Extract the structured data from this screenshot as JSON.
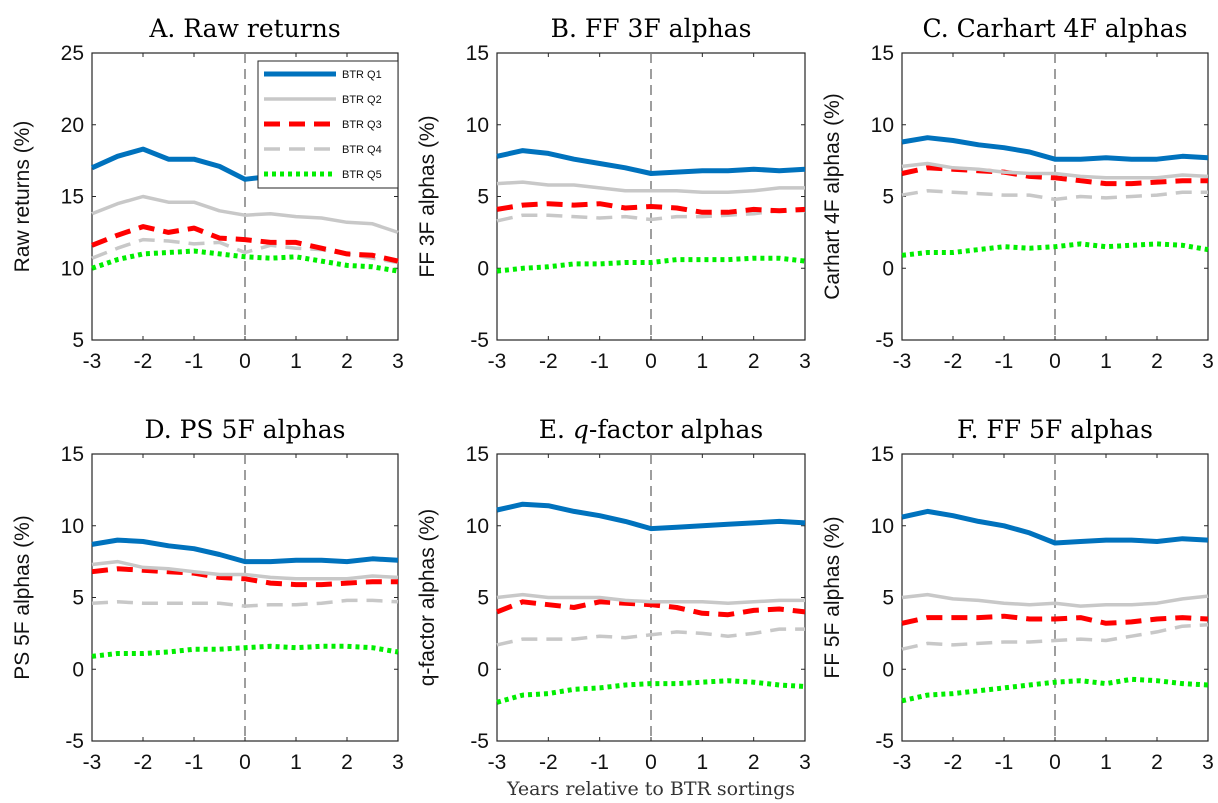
{
  "figure": {
    "xlabel": "Years relative to BTR sortings"
  },
  "legend": [
    "BTR Q1",
    "BTR Q2",
    "BTR Q3",
    "BTR Q4",
    "BTR Q5"
  ],
  "series_styles": [
    {
      "name": "BTR Q1",
      "color": "#0072BD",
      "dash": "solid"
    },
    {
      "name": "BTR Q2",
      "color": "#c8c8c8",
      "dash": "solid"
    },
    {
      "name": "BTR Q3",
      "color": "#ff0000",
      "dash": "dashed"
    },
    {
      "name": "BTR Q4",
      "color": "#c8c8c8",
      "dash": "dashed"
    },
    {
      "name": "BTR Q5",
      "color": "#00ee00",
      "dash": "dotted"
    }
  ],
  "chart_data": [
    {
      "type": "line",
      "title": "A. Raw returns",
      "ylabel": "Raw returns (%)",
      "xlim": [
        -3,
        3
      ],
      "ylim": [
        5,
        25
      ],
      "xticks": [
        -3,
        -2,
        -1,
        0,
        1,
        2,
        3
      ],
      "yticks": [
        5,
        10,
        15,
        20,
        25
      ],
      "x": [
        -3,
        -2.5,
        -2,
        -1.5,
        -1,
        -0.5,
        0,
        0.5,
        1,
        1.5,
        2,
        2.5,
        3
      ],
      "legend_position": "top-right",
      "series": [
        {
          "name": "BTR Q1",
          "values": [
            17.0,
            17.8,
            18.3,
            17.6,
            17.6,
            17.1,
            16.2,
            16.4,
            16.5,
            16.3,
            16.1,
            16.2,
            16.1
          ]
        },
        {
          "name": "BTR Q2",
          "values": [
            13.8,
            14.5,
            15.0,
            14.6,
            14.6,
            14.0,
            13.7,
            13.8,
            13.6,
            13.5,
            13.2,
            13.1,
            12.5
          ]
        },
        {
          "name": "BTR Q3",
          "values": [
            11.6,
            12.3,
            12.9,
            12.5,
            12.8,
            12.1,
            12.0,
            11.8,
            11.8,
            11.4,
            11.0,
            10.9,
            10.5
          ]
        },
        {
          "name": "BTR Q4",
          "values": [
            10.7,
            11.4,
            12.0,
            11.9,
            11.7,
            11.8,
            11.1,
            11.6,
            11.4,
            11.3,
            11.0,
            10.7,
            10.4
          ]
        },
        {
          "name": "BTR Q5",
          "values": [
            10.0,
            10.6,
            11.0,
            11.1,
            11.2,
            11.0,
            10.8,
            10.7,
            10.8,
            10.5,
            10.2,
            10.1,
            9.8
          ]
        }
      ]
    },
    {
      "type": "line",
      "title": "B. FF 3F alphas",
      "ylabel": "FF 3F alphas (%)",
      "xlim": [
        -3,
        3
      ],
      "ylim": [
        -5,
        15
      ],
      "xticks": [
        -3,
        -2,
        -1,
        0,
        1,
        2,
        3
      ],
      "yticks": [
        -5,
        0,
        5,
        10,
        15
      ],
      "x": [
        -3,
        -2.5,
        -2,
        -1.5,
        -1,
        -0.5,
        0,
        0.5,
        1,
        1.5,
        2,
        2.5,
        3
      ],
      "series": [
        {
          "name": "BTR Q1",
          "values": [
            7.8,
            8.2,
            8.0,
            7.6,
            7.3,
            7.0,
            6.6,
            6.7,
            6.8,
            6.8,
            6.9,
            6.8,
            6.9
          ]
        },
        {
          "name": "BTR Q2",
          "values": [
            5.9,
            6.0,
            5.8,
            5.8,
            5.6,
            5.4,
            5.4,
            5.4,
            5.3,
            5.3,
            5.4,
            5.6,
            5.6
          ]
        },
        {
          "name": "BTR Q3",
          "values": [
            4.1,
            4.4,
            4.5,
            4.4,
            4.5,
            4.2,
            4.3,
            4.2,
            3.9,
            3.9,
            4.1,
            4.0,
            4.1
          ]
        },
        {
          "name": "BTR Q4",
          "values": [
            3.3,
            3.7,
            3.7,
            3.6,
            3.5,
            3.6,
            3.4,
            3.6,
            3.6,
            3.7,
            3.8,
            4.0,
            4.0
          ]
        },
        {
          "name": "BTR Q5",
          "values": [
            -0.2,
            0.0,
            0.1,
            0.3,
            0.3,
            0.4,
            0.4,
            0.6,
            0.6,
            0.6,
            0.7,
            0.7,
            0.5
          ]
        }
      ]
    },
    {
      "type": "line",
      "title": "C. Carhart 4F alphas",
      "ylabel": "Carhart 4F alphas (%)",
      "xlim": [
        -3,
        3
      ],
      "ylim": [
        -5,
        15
      ],
      "xticks": [
        -3,
        -2,
        -1,
        0,
        1,
        2,
        3
      ],
      "yticks": [
        -5,
        0,
        5,
        10,
        15
      ],
      "x": [
        -3,
        -2.5,
        -2,
        -1.5,
        -1,
        -0.5,
        0,
        0.5,
        1,
        1.5,
        2,
        2.5,
        3
      ],
      "series": [
        {
          "name": "BTR Q1",
          "values": [
            8.8,
            9.1,
            8.9,
            8.6,
            8.4,
            8.1,
            7.6,
            7.6,
            7.7,
            7.6,
            7.6,
            7.8,
            7.7
          ]
        },
        {
          "name": "BTR Q2",
          "values": [
            7.1,
            7.3,
            7.0,
            6.9,
            6.7,
            6.6,
            6.6,
            6.4,
            6.3,
            6.3,
            6.3,
            6.5,
            6.4
          ]
        },
        {
          "name": "BTR Q3",
          "values": [
            6.6,
            7.0,
            6.9,
            6.8,
            6.7,
            6.4,
            6.3,
            6.1,
            5.9,
            5.9,
            6.0,
            6.1,
            6.1
          ]
        },
        {
          "name": "BTR Q4",
          "values": [
            5.1,
            5.4,
            5.3,
            5.2,
            5.1,
            5.1,
            4.8,
            5.0,
            4.9,
            5.0,
            5.1,
            5.3,
            5.3
          ]
        },
        {
          "name": "BTR Q5",
          "values": [
            0.9,
            1.1,
            1.1,
            1.3,
            1.5,
            1.4,
            1.5,
            1.7,
            1.5,
            1.6,
            1.7,
            1.6,
            1.3
          ]
        }
      ]
    },
    {
      "type": "line",
      "title": "D. PS 5F alphas",
      "ylabel": "PS 5F alphas (%)",
      "xlim": [
        -3,
        3
      ],
      "ylim": [
        -5,
        15
      ],
      "xticks": [
        -3,
        -2,
        -1,
        0,
        1,
        2,
        3
      ],
      "yticks": [
        -5,
        0,
        5,
        10,
        15
      ],
      "x": [
        -3,
        -2.5,
        -2,
        -1.5,
        -1,
        -0.5,
        0,
        0.5,
        1,
        1.5,
        2,
        2.5,
        3
      ],
      "series": [
        {
          "name": "BTR Q1",
          "values": [
            8.7,
            9.0,
            8.9,
            8.6,
            8.4,
            8.0,
            7.5,
            7.5,
            7.6,
            7.6,
            7.5,
            7.7,
            7.6
          ]
        },
        {
          "name": "BTR Q2",
          "values": [
            7.3,
            7.5,
            7.1,
            7.0,
            6.8,
            6.6,
            6.6,
            6.4,
            6.3,
            6.3,
            6.3,
            6.5,
            6.4
          ]
        },
        {
          "name": "BTR Q3",
          "values": [
            6.8,
            7.0,
            6.9,
            6.8,
            6.7,
            6.4,
            6.3,
            6.0,
            5.9,
            5.9,
            6.0,
            6.1,
            6.1
          ]
        },
        {
          "name": "BTR Q4",
          "values": [
            4.6,
            4.7,
            4.6,
            4.6,
            4.6,
            4.6,
            4.4,
            4.5,
            4.5,
            4.6,
            4.8,
            4.8,
            4.7
          ]
        },
        {
          "name": "BTR Q5",
          "values": [
            0.9,
            1.1,
            1.1,
            1.2,
            1.4,
            1.4,
            1.5,
            1.6,
            1.5,
            1.6,
            1.6,
            1.5,
            1.2
          ]
        }
      ]
    },
    {
      "type": "line",
      "title": "E. q-factor alphas",
      "ylabel": "q-factor alphas (%)",
      "xlim": [
        -3,
        3
      ],
      "ylim": [
        -5,
        15
      ],
      "xticks": [
        -3,
        -2,
        -1,
        0,
        1,
        2,
        3
      ],
      "yticks": [
        -5,
        0,
        5,
        10,
        15
      ],
      "x": [
        -3,
        -2.5,
        -2,
        -1.5,
        -1,
        -0.5,
        0,
        0.5,
        1,
        1.5,
        2,
        2.5,
        3
      ],
      "series": [
        {
          "name": "BTR Q1",
          "values": [
            11.1,
            11.5,
            11.4,
            11.0,
            10.7,
            10.3,
            9.8,
            9.9,
            10.0,
            10.1,
            10.2,
            10.3,
            10.2
          ]
        },
        {
          "name": "BTR Q2",
          "values": [
            5.0,
            5.2,
            5.0,
            5.0,
            5.0,
            4.8,
            4.7,
            4.7,
            4.7,
            4.6,
            4.7,
            4.8,
            4.8
          ]
        },
        {
          "name": "BTR Q3",
          "values": [
            4.0,
            4.7,
            4.5,
            4.3,
            4.7,
            4.6,
            4.5,
            4.3,
            3.9,
            3.8,
            4.1,
            4.2,
            4.0
          ]
        },
        {
          "name": "BTR Q4",
          "values": [
            1.7,
            2.1,
            2.1,
            2.1,
            2.3,
            2.2,
            2.4,
            2.6,
            2.5,
            2.3,
            2.5,
            2.8,
            2.8
          ]
        },
        {
          "name": "BTR Q5",
          "values": [
            -2.3,
            -1.8,
            -1.7,
            -1.4,
            -1.3,
            -1.1,
            -1.0,
            -1.0,
            -0.9,
            -0.8,
            -0.9,
            -1.1,
            -1.2
          ]
        }
      ]
    },
    {
      "type": "line",
      "title": "F. FF 5F alphas",
      "ylabel": "FF 5F alphas (%)",
      "xlim": [
        -3,
        3
      ],
      "ylim": [
        -5,
        15
      ],
      "xticks": [
        -3,
        -2,
        -1,
        0,
        1,
        2,
        3
      ],
      "yticks": [
        -5,
        0,
        5,
        10,
        15
      ],
      "x": [
        -3,
        -2.5,
        -2,
        -1.5,
        -1,
        -0.5,
        0,
        0.5,
        1,
        1.5,
        2,
        2.5,
        3
      ],
      "series": [
        {
          "name": "BTR Q1",
          "values": [
            10.6,
            11.0,
            10.7,
            10.3,
            10.0,
            9.5,
            8.8,
            8.9,
            9.0,
            9.0,
            8.9,
            9.1,
            9.0
          ]
        },
        {
          "name": "BTR Q2",
          "values": [
            5.0,
            5.2,
            4.9,
            4.8,
            4.6,
            4.5,
            4.6,
            4.4,
            4.5,
            4.5,
            4.6,
            4.9,
            5.1
          ]
        },
        {
          "name": "BTR Q3",
          "values": [
            3.2,
            3.6,
            3.6,
            3.6,
            3.7,
            3.5,
            3.5,
            3.6,
            3.2,
            3.3,
            3.5,
            3.6,
            3.5
          ]
        },
        {
          "name": "BTR Q4",
          "values": [
            1.4,
            1.8,
            1.7,
            1.8,
            1.9,
            1.9,
            2.0,
            2.1,
            2.0,
            2.3,
            2.6,
            3.0,
            3.1
          ]
        },
        {
          "name": "BTR Q5",
          "values": [
            -2.2,
            -1.8,
            -1.7,
            -1.5,
            -1.3,
            -1.1,
            -0.9,
            -0.8,
            -1.0,
            -0.7,
            -0.8,
            -1.0,
            -1.1
          ]
        }
      ]
    }
  ]
}
